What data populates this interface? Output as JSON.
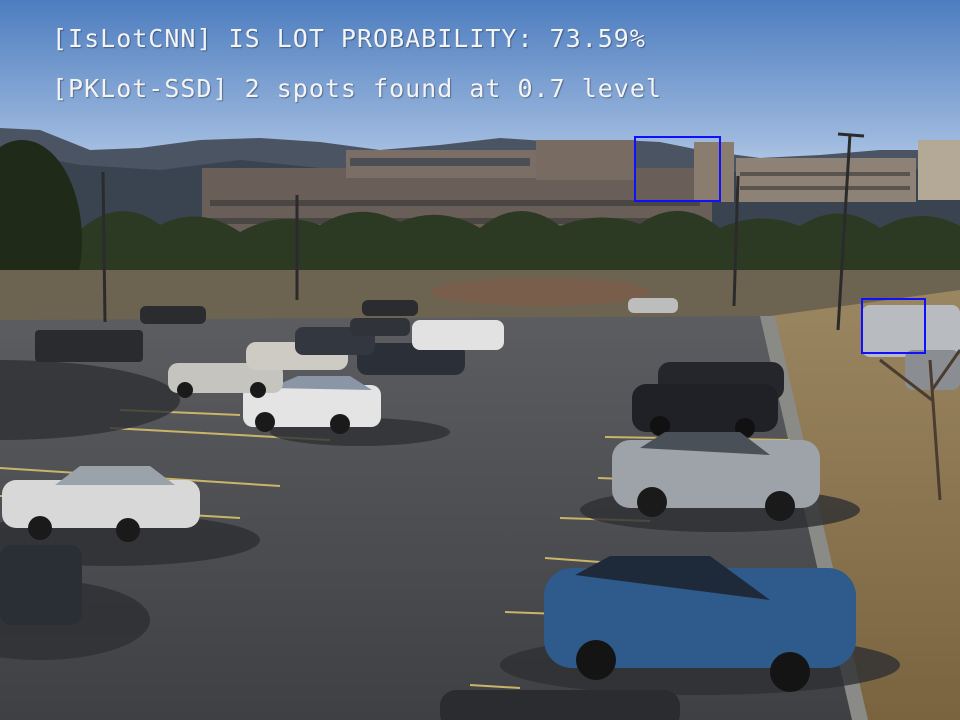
{
  "overlay": {
    "line1": "[IsLotCNN] IS LOT PROBABILITY: 73.59%",
    "line2": "[PKLot-SSD] 2 spots found at 0.7 level"
  },
  "detections": {
    "count": 2,
    "threshold": 0.7,
    "lot_probability_percent": 73.59,
    "box_color": "#1010ff"
  },
  "scene": {
    "sky_top": "#4f7fc0",
    "sky_bottom": "#c4d6ec",
    "asphalt": "#4e5054",
    "grass": "#8e7a52"
  }
}
